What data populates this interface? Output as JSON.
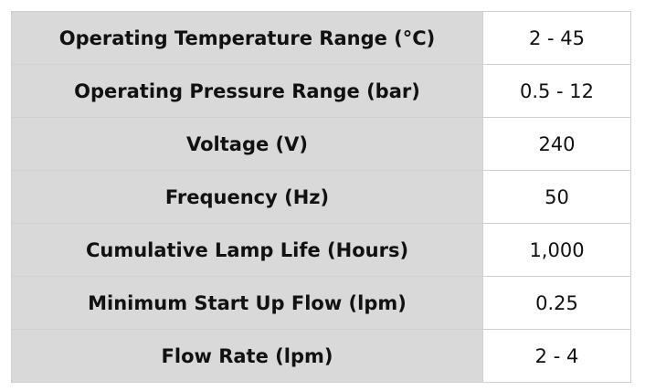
{
  "table": {
    "rows": [
      [
        "Operating Temperature Range (°C)",
        "2 - 45"
      ],
      [
        "Operating Pressure Range (bar)",
        "0.5 - 12"
      ],
      [
        "Voltage (V)",
        "240"
      ],
      [
        "Frequency (Hz)",
        "50"
      ],
      [
        "Cumulative Lamp Life (Hours)",
        "1,000"
      ],
      [
        "Minimum Start Up Flow (lpm)",
        "0.25"
      ],
      [
        "Flow Rate (lpm)",
        "2 - 4"
      ]
    ]
  }
}
